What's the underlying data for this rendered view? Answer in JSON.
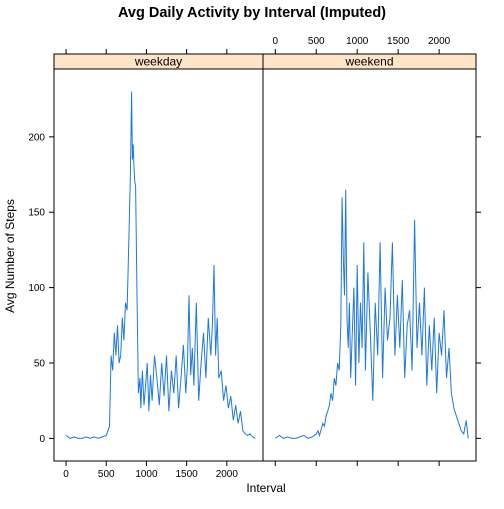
{
  "chart_data": {
    "type": "line",
    "title": "Avg Daily Activity by Interval (Imputed)",
    "xlabel": "Interval",
    "ylabel": "Avg Number of Steps",
    "xlim": [
      -150,
      2450
    ],
    "ylim": [
      -15,
      245
    ],
    "x_ticks": [
      0,
      500,
      1000,
      1500,
      2000
    ],
    "y_ticks": [
      0,
      50,
      100,
      150,
      200
    ],
    "line_color": "#1f78e0",
    "strip_color": "#ffe4c8",
    "panels": [
      {
        "strip_label": "weekday",
        "series": [
          {
            "x": [
              0,
              50,
              100,
              150,
              200,
              250,
              300,
              350,
              400,
              450,
              500,
              520,
              540,
              560,
              580,
              600,
              620,
              640,
              660,
              680,
              700,
              720,
              740,
              760,
              780,
              800,
              815,
              825,
              835,
              845,
              855,
              865,
              880,
              900,
              920,
              930,
              950,
              970,
              990,
              1010,
              1030,
              1050,
              1070,
              1100,
              1130,
              1160,
              1190,
              1220,
              1250,
              1280,
              1310,
              1340,
              1370,
              1400,
              1430,
              1460,
              1490,
              1510,
              1530,
              1550,
              1570,
              1590,
              1620,
              1650,
              1680,
              1710,
              1740,
              1770,
              1800,
              1820,
              1840,
              1860,
              1880,
              1900,
              1930,
              1960,
              1990,
              2020,
              2050,
              2080,
              2110,
              2140,
              2170,
              2200,
              2230,
              2260,
              2290,
              2320,
              2355
            ],
            "y": [
              2,
              0,
              1,
              0,
              0,
              1,
              0,
              1,
              0,
              1,
              2,
              5,
              8,
              55,
              45,
              70,
              55,
              75,
              50,
              55,
              80,
              65,
              90,
              85,
              130,
              175,
              230,
              185,
              195,
              180,
              170,
              168,
              105,
              30,
              40,
              20,
              45,
              22,
              35,
              50,
              18,
              42,
              25,
              55,
              40,
              22,
              50,
              28,
              55,
              18,
              45,
              30,
              55,
              20,
              40,
              62,
              30,
              48,
              95,
              42,
              60,
              35,
              90,
              25,
              50,
              70,
              40,
              80,
              55,
              75,
              115,
              55,
              80,
              40,
              45,
              25,
              35,
              20,
              28,
              12,
              22,
              10,
              18,
              5,
              3,
              2,
              3,
              1,
              0
            ]
          }
        ]
      },
      {
        "strip_label": "weekend",
        "series": [
          {
            "x": [
              0,
              50,
              100,
              150,
              200,
              250,
              300,
              350,
              400,
              450,
              500,
              520,
              540,
              560,
              580,
              600,
              620,
              640,
              660,
              680,
              700,
              720,
              740,
              760,
              780,
              800,
              815,
              830,
              845,
              860,
              875,
              890,
              905,
              920,
              940,
              960,
              980,
              1000,
              1020,
              1040,
              1060,
              1080,
              1100,
              1130,
              1160,
              1190,
              1220,
              1250,
              1280,
              1310,
              1340,
              1370,
              1400,
              1430,
              1460,
              1490,
              1520,
              1550,
              1580,
              1610,
              1640,
              1670,
              1700,
              1730,
              1760,
              1790,
              1820,
              1850,
              1880,
              1910,
              1940,
              1970,
              2000,
              2030,
              2060,
              2090,
              2120,
              2150,
              2180,
              2210,
              2240,
              2270,
              2300,
              2330,
              2355
            ],
            "y": [
              0,
              2,
              0,
              1,
              0,
              0,
              1,
              2,
              0,
              1,
              3,
              5,
              2,
              6,
              10,
              8,
              15,
              18,
              22,
              30,
              25,
              40,
              35,
              50,
              45,
              75,
              160,
              120,
              95,
              165,
              80,
              60,
              90,
              40,
              70,
              100,
              35,
              115,
              50,
              90,
              60,
              130,
              45,
              110,
              70,
              25,
              90,
              55,
              130,
              40,
              100,
              65,
              80,
              130,
              55,
              95,
              60,
              105,
              40,
              75,
              85,
              45,
              145,
              60,
              90,
              55,
              100,
              35,
              75,
              45,
              80,
              30,
              70,
              55,
              85,
              40,
              60,
              30,
              20,
              15,
              10,
              5,
              3,
              12,
              0
            ]
          }
        ]
      }
    ]
  }
}
